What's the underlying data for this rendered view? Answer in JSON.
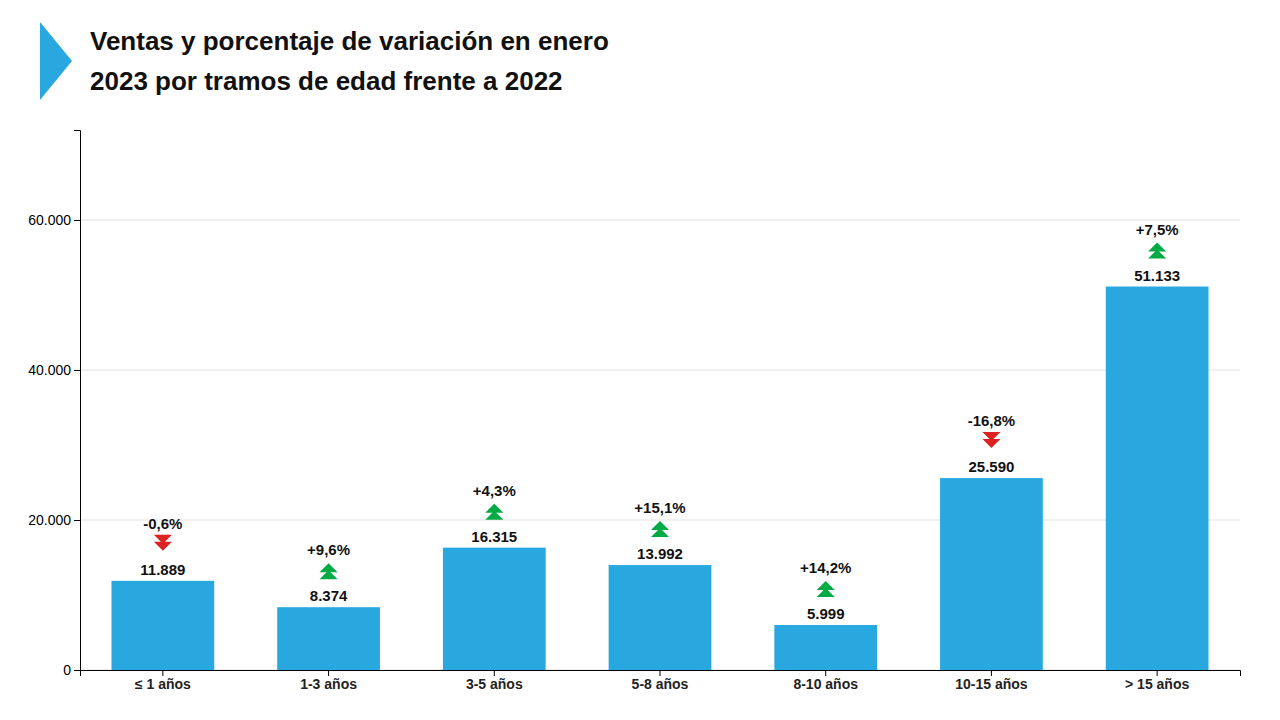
{
  "chart_data": {
    "type": "bar",
    "title": [
      "Ventas y porcentaje de variación en enero",
      "2023 por tramos de edad frente a 2022"
    ],
    "categories": [
      "≤ 1 años",
      "1-3 años",
      "3-5 años",
      "5-8 años",
      "8-10 años",
      "10-15 años",
      "> 15 años"
    ],
    "values": [
      11889,
      8374,
      16315,
      13992,
      5999,
      25590,
      51133
    ],
    "value_labels": [
      "11.889",
      "8.374",
      "16.315",
      "13.992",
      "5.999",
      "25.590",
      "51.133"
    ],
    "data_labels": true,
    "color": "#29a8e0",
    "ylim": [
      0,
      72000
    ],
    "yticks": [
      0,
      {
        "value": 20000,
        "label": "20.000"
      },
      {
        "value": 40000,
        "label": "40.000"
      },
      {
        "value": 60000,
        "label": "60.000"
      }
    ],
    "grid": true,
    "annotations": [
      {
        "text": "-0,6%",
        "value": -0.6,
        "color": "#dd2222"
      },
      {
        "text": "+9,6%",
        "value": 9.6,
        "color": "#00aa44"
      },
      {
        "text": "+4,3%",
        "value": 4.3,
        "color": "#00aa44"
      },
      {
        "text": "+15,1%",
        "value": 15.1,
        "color": "#00aa44"
      },
      {
        "text": "+14,2%",
        "value": 14.2,
        "color": "#00aa44"
      },
      {
        "text": "-16,8%",
        "value": -16.8,
        "color": "#dd2222"
      },
      {
        "text": "+7,5%",
        "value": 7.5,
        "color": "#00aa44"
      }
    ]
  }
}
